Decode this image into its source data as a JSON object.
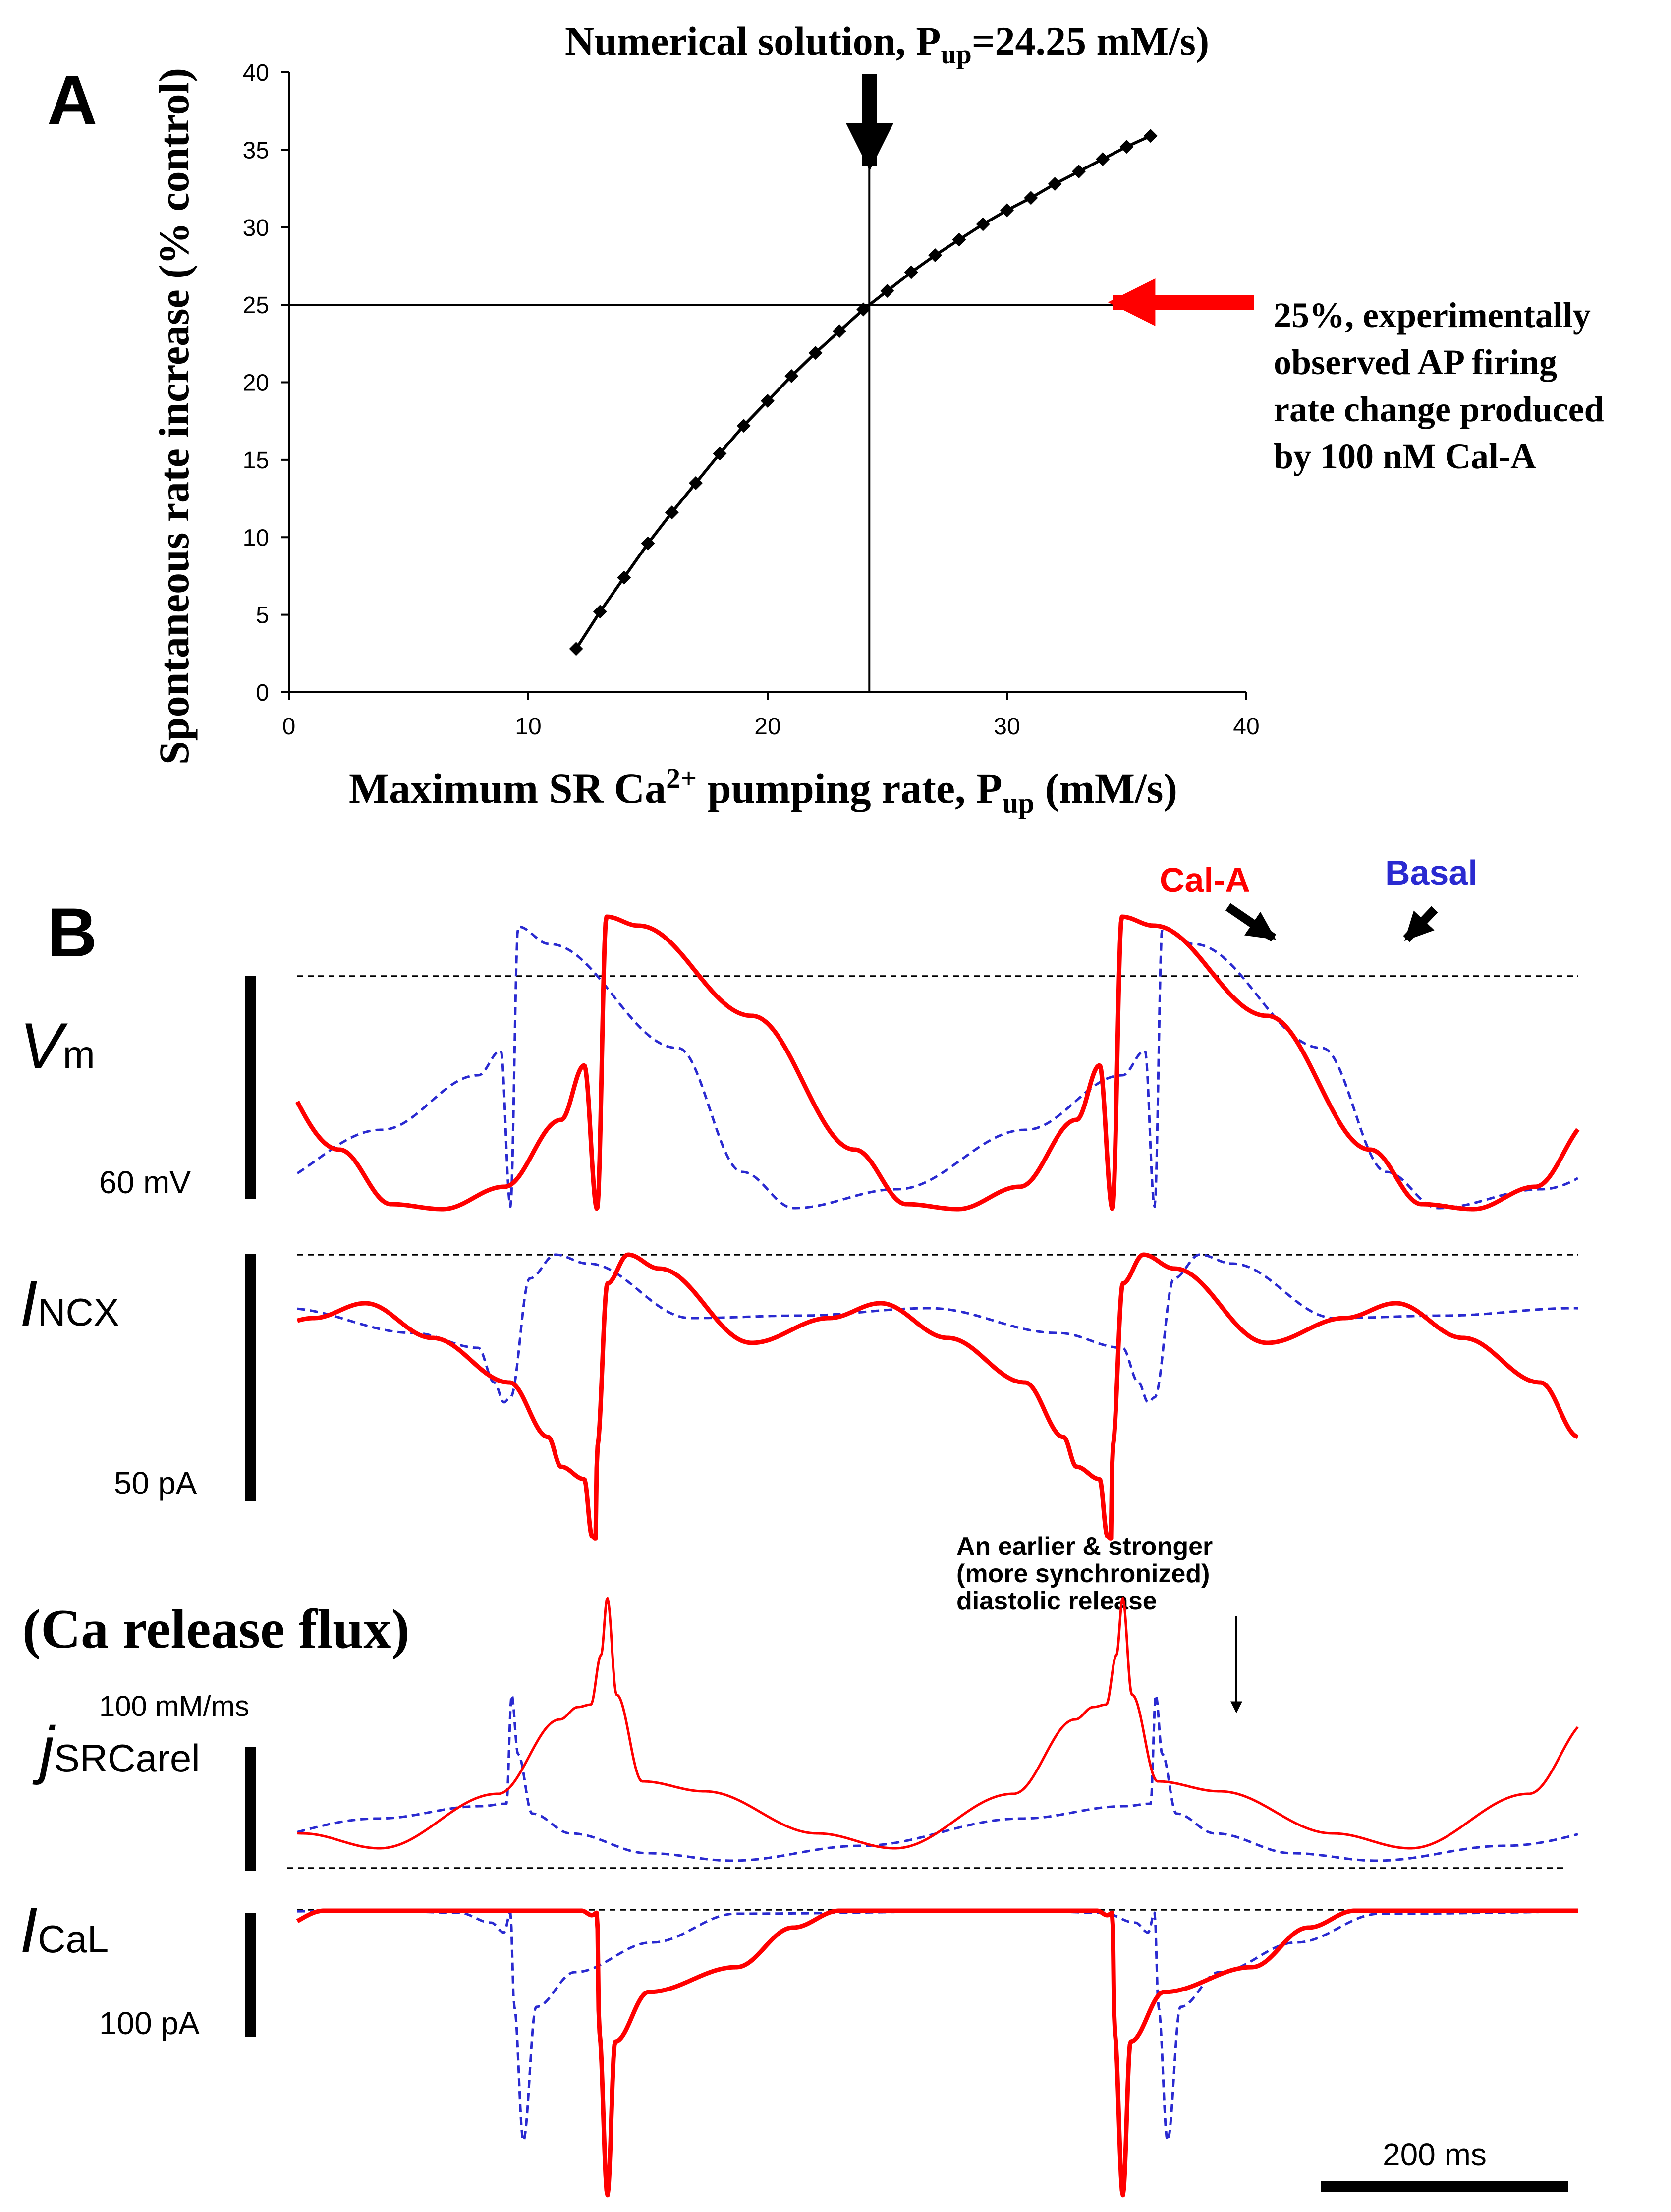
{
  "panel_a": {
    "letter": "A",
    "chart_data": {
      "type": "line",
      "title": "Numerical solution, P",
      "title_sub": "up",
      "title_tail": "=24.25 mM/s)",
      "xlabel_main": "Maximum SR Ca",
      "xlabel_sup": "2+",
      "xlabel_mid": " pumping rate, P",
      "xlabel_sub": "up",
      "xlabel_tail": " (mM/s)",
      "ylabel": "Spontaneous rate increase (% control)",
      "xlim": [
        0,
        40
      ],
      "ylim": [
        0,
        40
      ],
      "xticks": [
        0,
        10,
        20,
        30,
        40
      ],
      "yticks": [
        0,
        5,
        10,
        15,
        20,
        25,
        30,
        35,
        40
      ],
      "series": [
        {
          "name": "Spontaneous rate increase",
          "x": [
            12,
            13,
            14,
            15,
            16,
            17,
            18,
            19,
            20,
            21,
            22,
            23,
            24,
            25,
            26,
            27,
            28,
            29,
            30,
            31,
            32,
            33,
            34,
            35,
            36
          ],
          "y": [
            2.8,
            5.2,
            7.4,
            9.6,
            11.6,
            13.5,
            15.4,
            17.2,
            18.8,
            20.4,
            21.9,
            23.3,
            24.7,
            25.9,
            27.1,
            28.2,
            29.2,
            30.2,
            31.1,
            31.9,
            32.8,
            33.6,
            34.4,
            35.2,
            35.9
          ]
        }
      ],
      "reference_x": 24.25,
      "reference_y": 25,
      "annotation": [
        "25%, experimentally",
        "observed AP firing",
        "rate change produced",
        "by 100 nM Cal-A"
      ],
      "colors": {
        "curve": "#000000",
        "arrow_red": "#ff0000",
        "arrow_black": "#000000"
      }
    }
  },
  "panel_b": {
    "letter": "B",
    "chart_data": {
      "type": "line",
      "period_basal_ms": 520,
      "period_cal_a_ms": 416,
      "legend": [
        "Cal-A",
        "Basal"
      ],
      "traces": [
        {
          "label": "V",
          "label_sub": "m",
          "scale": "60 mV"
        },
        {
          "label": "I",
          "label_sub": "NCX",
          "scale": "50 pA"
        },
        {
          "label": "j",
          "label_sub": "SRCarel",
          "scale": "100 mM/ms",
          "heading": "(Ca release flux)"
        },
        {
          "label": "I",
          "label_sub": "CaL",
          "scale": "100 pA"
        }
      ],
      "time_scale": "200 ms",
      "annotation": [
        "An earlier & stronger",
        "(more synchronized)",
        "diastolic release"
      ],
      "colors": {
        "cal_a": "#ff0000",
        "basal": "#2a2ad0"
      }
    }
  }
}
